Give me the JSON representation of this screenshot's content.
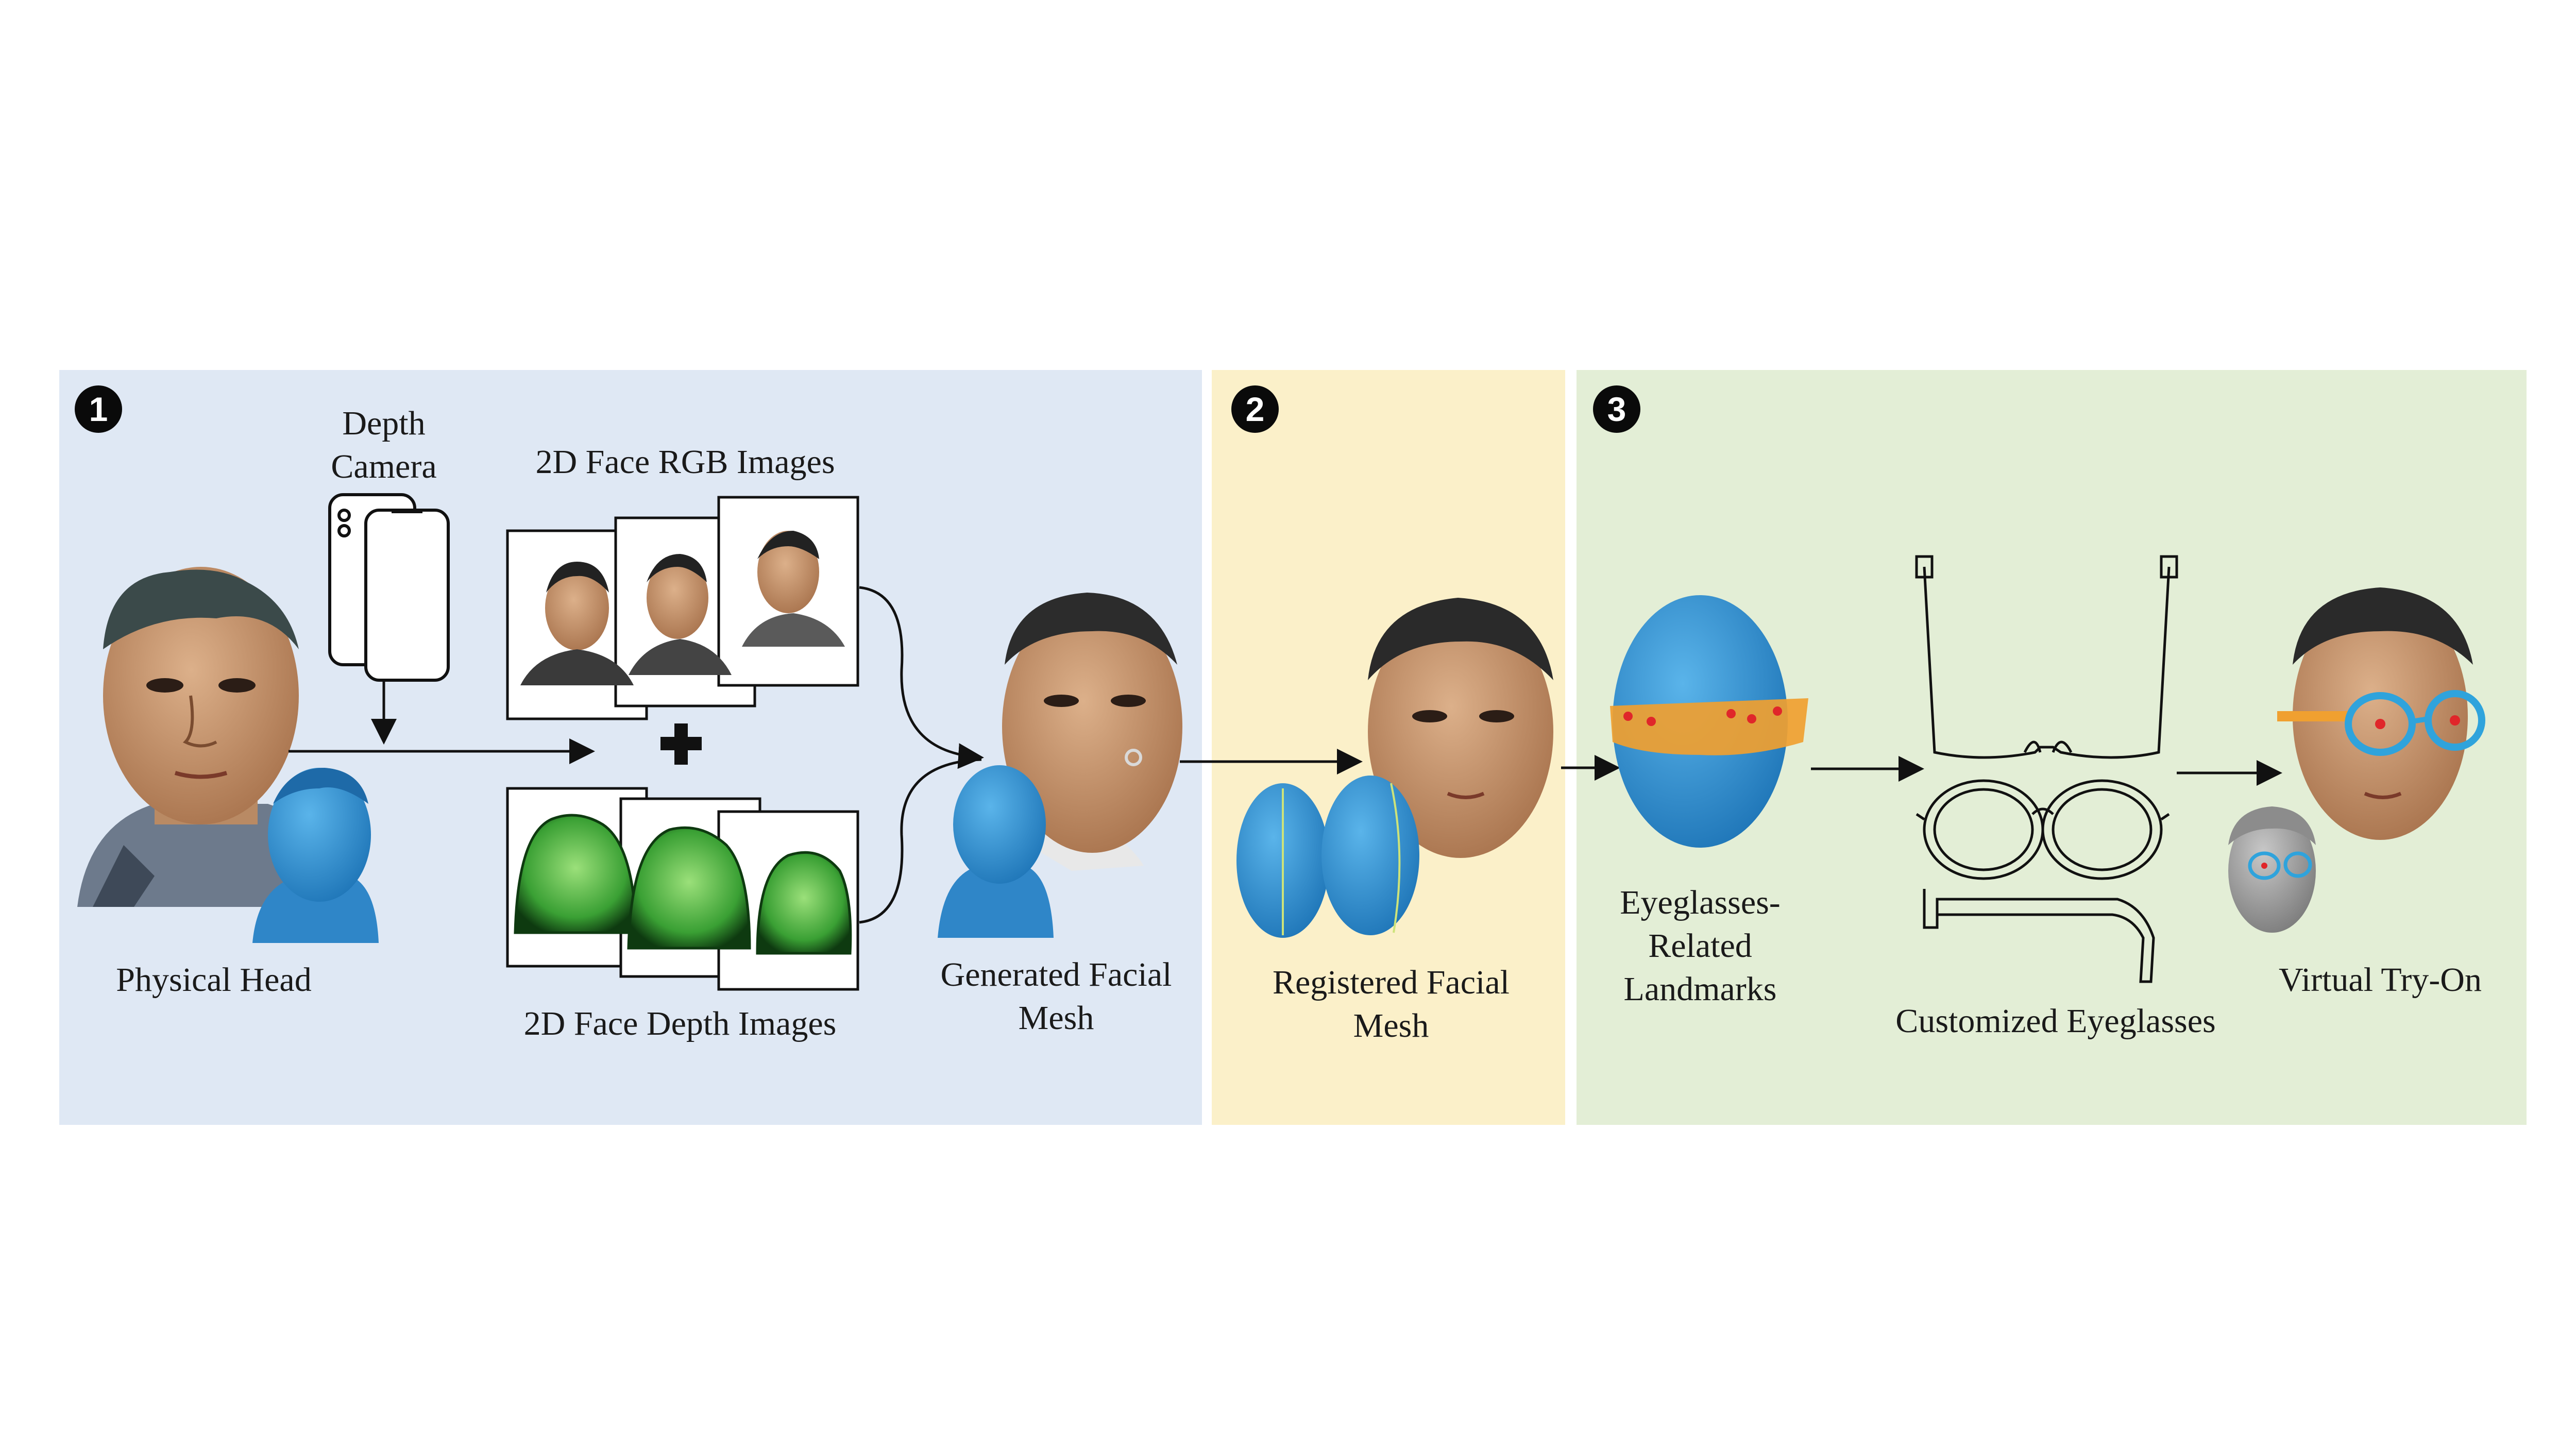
{
  "colors": {
    "panel1_bg": "#dfe8f4",
    "panel2_bg": "#fbf0c9",
    "panel3_bg": "#e3eed6",
    "skin": "#c8986f",
    "hair": "#2a2a2a",
    "scan_blue": "#2f95d6",
    "depth_green": "#3fae3a",
    "landmark_orange": "#f0a030",
    "landmark_red": "#e0262a",
    "glasses_blue": "#2fa3dc",
    "gray_mesh": "#9a9a9a"
  },
  "steps": {
    "step1": {
      "badge": "1",
      "depth_camera_line1": "Depth",
      "depth_camera_line2": "Camera",
      "rgb_images": "2D Face RGB Images",
      "physical_head": "Physical Head",
      "depth_images": "2D Face Depth Images",
      "generated_line1": "Generated Facial",
      "generated_line2": "Mesh"
    },
    "step2": {
      "badge": "2",
      "registered_line1": "Registered Facial",
      "registered_line2": "Mesh"
    },
    "step3": {
      "badge": "3",
      "landmarks_line1": "Eyeglasses-",
      "landmarks_line2": "Related",
      "landmarks_line3": "Landmarks",
      "customized": "Customized Eyeglasses",
      "tryon": "Virtual Try-On"
    }
  },
  "icons": [
    "phone-icon",
    "plus-icon",
    "arrow-icon"
  ]
}
